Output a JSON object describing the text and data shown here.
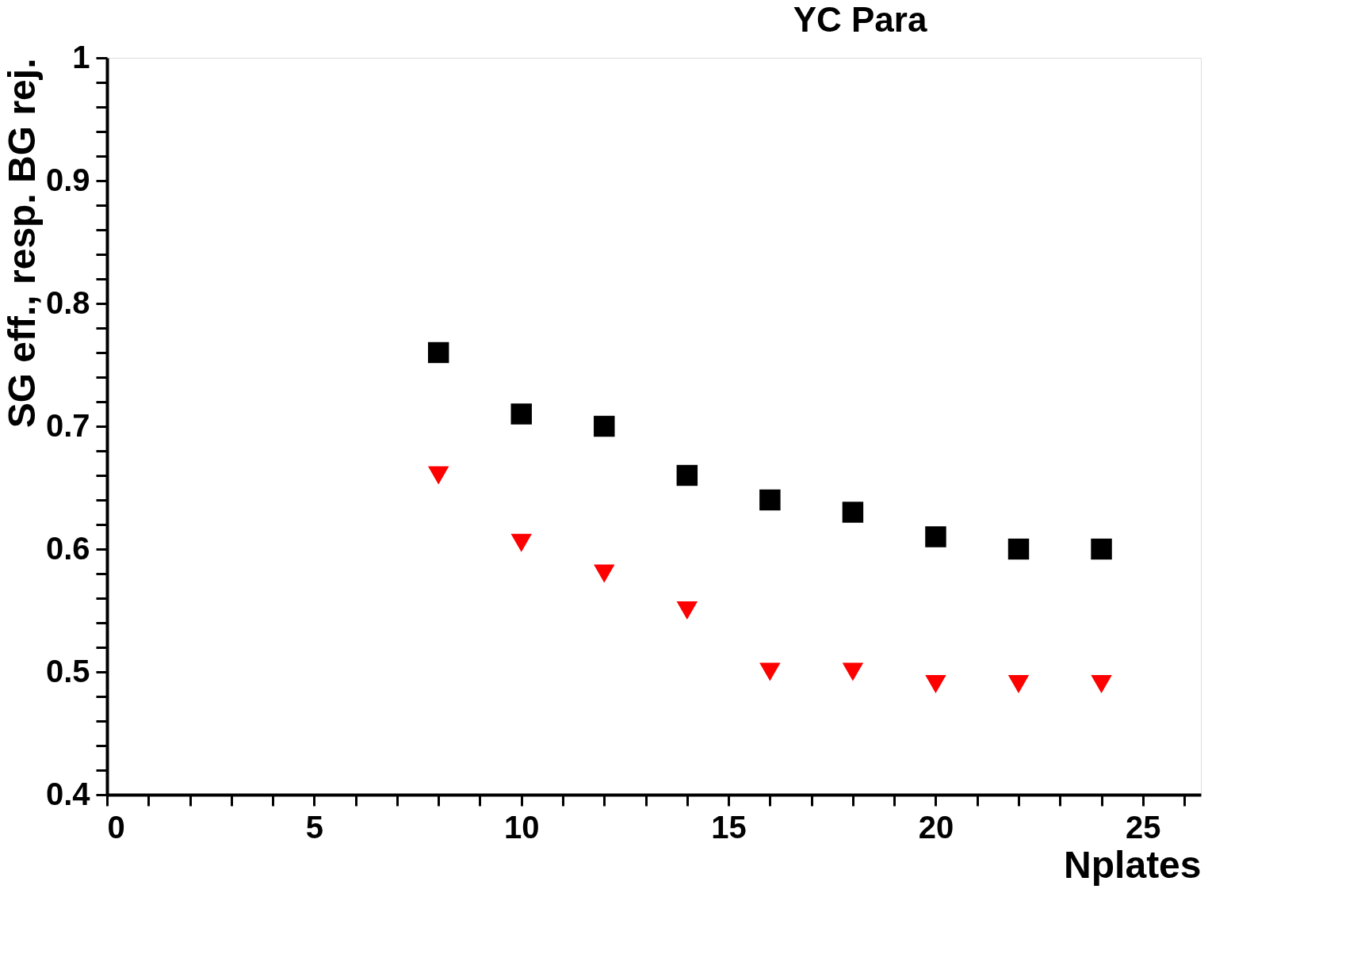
{
  "chart_data": {
    "type": "scatter",
    "title": "YC Para",
    "xlabel": "Nplates",
    "ylabel": "SG eff., resp. BG rej.",
    "x": [
      8,
      10,
      12,
      14,
      16,
      18,
      20,
      22,
      24
    ],
    "series": [
      {
        "color": "#000000",
        "marker": "square",
        "values": [
          0.76,
          0.71,
          0.7,
          0.66,
          0.64,
          0.63,
          0.61,
          0.6,
          0.6
        ]
      },
      {
        "color": "#ff0000",
        "marker": "triangle-down",
        "values": [
          0.66,
          0.605,
          0.58,
          0.55,
          0.5,
          0.5,
          0.49,
          0.49,
          0.49
        ]
      }
    ],
    "xlim": [
      0,
      26.4
    ],
    "xticks": [
      0,
      {
        "value": 1,
        "label": null
      },
      {
        "value": 2,
        "label": null
      },
      {
        "value": 3,
        "label": null
      },
      {
        "value": 4,
        "label": null
      },
      5,
      {
        "value": 6,
        "label": null
      },
      {
        "value": 7,
        "label": null
      },
      {
        "value": 8,
        "label": null
      },
      {
        "value": 9,
        "label": null
      },
      10,
      {
        "value": 11,
        "label": null
      },
      {
        "value": 12,
        "label": null
      },
      {
        "value": 13,
        "label": null
      },
      {
        "value": 14,
        "label": null
      },
      15,
      {
        "value": 16,
        "label": null
      },
      {
        "value": 17,
        "label": null
      },
      {
        "value": 18,
        "label": null
      },
      {
        "value": 19,
        "label": null
      },
      20,
      {
        "value": 21,
        "label": null
      },
      {
        "value": 22,
        "label": null
      },
      {
        "value": 23,
        "label": null
      },
      {
        "value": 24,
        "label": null
      },
      25,
      {
        "value": 26,
        "label": null
      }
    ],
    "ylim": [
      0.4,
      1
    ],
    "yticks": [
      0.4,
      {
        "value": 0.42,
        "label": null
      },
      {
        "value": 0.44,
        "label": null
      },
      {
        "value": 0.46,
        "label": null
      },
      {
        "value": 0.48,
        "label": null
      },
      0.5,
      {
        "value": 0.52,
        "label": null
      },
      {
        "value": 0.54,
        "label": null
      },
      {
        "value": 0.56,
        "label": null
      },
      {
        "value": 0.58,
        "label": null
      },
      0.6,
      {
        "value": 0.62,
        "label": null
      },
      {
        "value": 0.64,
        "label": null
      },
      {
        "value": 0.66,
        "label": null
      },
      {
        "value": 0.68,
        "label": null
      },
      0.7,
      {
        "value": 0.72,
        "label": null
      },
      {
        "value": 0.74,
        "label": null
      },
      {
        "value": 0.76,
        "label": null
      },
      {
        "value": 0.78,
        "label": null
      },
      0.8,
      {
        "value": 0.82,
        "label": null
      },
      {
        "value": 0.84,
        "label": null
      },
      {
        "value": 0.86,
        "label": null
      },
      {
        "value": 0.88,
        "label": null
      },
      0.9,
      {
        "value": 0.92,
        "label": null
      },
      {
        "value": 0.94,
        "label": null
      },
      {
        "value": 0.96,
        "label": null
      },
      {
        "value": 0.98,
        "label": null
      },
      1
    ],
    "grid": false,
    "legend": false
  }
}
